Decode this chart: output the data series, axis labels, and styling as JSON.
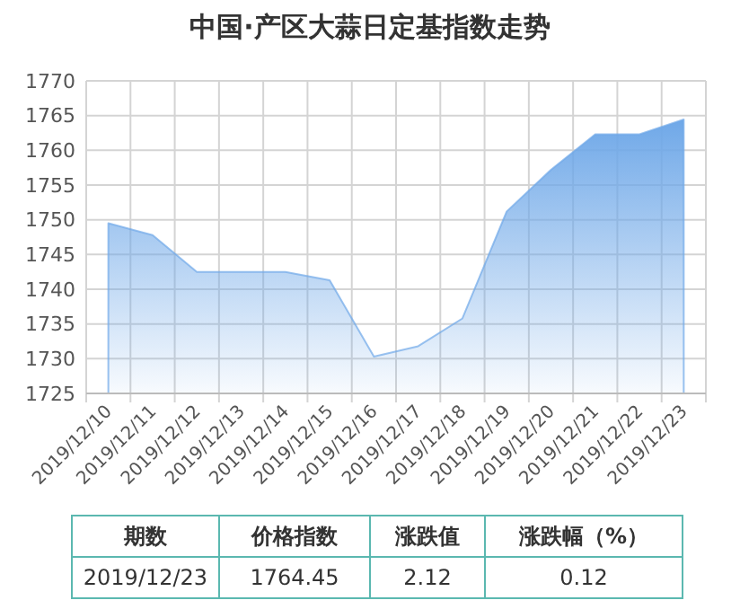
{
  "chart_data": {
    "type": "area",
    "title": "中国·产区大蒜日定基指数走势",
    "categories": [
      "2019/12/10",
      "2019/12/11",
      "2019/12/12",
      "2019/12/13",
      "2019/12/14",
      "2019/12/15",
      "2019/12/16",
      "2019/12/17",
      "2019/12/18",
      "2019/12/19",
      "2019/12/20",
      "2019/12/21",
      "2019/12/22",
      "2019/12/23"
    ],
    "series": [
      {
        "color": "#6fa8e8",
        "values": [
          1749.5,
          1747.8,
          1742.5,
          1742.5,
          1742.5,
          1741.3,
          1730.3,
          1731.8,
          1735.8,
          1751.2,
          1757.2,
          1762.3,
          1762.3,
          1764.45
        ]
      }
    ],
    "ylim": [
      1725,
      1770
    ],
    "yticks": [
      1725,
      1730,
      1735,
      1740,
      1745,
      1750,
      1755,
      1760,
      1765,
      1770
    ],
    "grid": true,
    "annotations": [
      "期数",
      "价格指数",
      "涨跌值",
      "涨跌幅（%）",
      "2019/12/23",
      "1764.45",
      "2.12",
      "0.12"
    ]
  }
}
